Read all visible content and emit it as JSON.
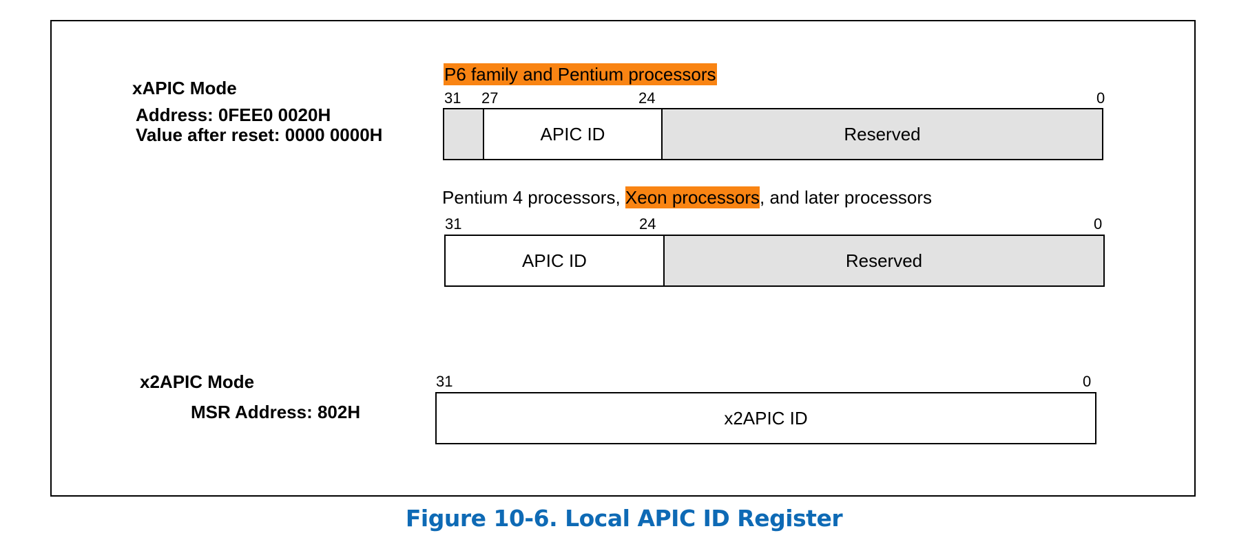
{
  "colors": {
    "highlight": "#f98413",
    "reserved_fill": "#e2e2e2",
    "plain_fill": "#ffffff",
    "caption_color": "#0e6ab5",
    "border": "#000000"
  },
  "xapic": {
    "title": "xAPIC Mode",
    "address": "Address: 0FEE0 0020H",
    "reset_value": "Value after reset: 0000 0000H",
    "p6": {
      "caption": "P6 family and Pentium processors",
      "bit_labels": [
        "31",
        "27",
        "24",
        "0"
      ],
      "fields": [
        {
          "label": "",
          "reserved": true
        },
        {
          "label": "APIC ID",
          "reserved": false
        },
        {
          "label": "Reserved",
          "reserved": true
        }
      ]
    },
    "p4": {
      "caption_part1": "Pentium 4 processors, ",
      "caption_highlight": "Xeon processors",
      "caption_part2": ", and later processors",
      "bit_labels": [
        "31",
        "24",
        "0"
      ],
      "fields": [
        {
          "label": "APIC ID",
          "reserved": false
        },
        {
          "label": "Reserved",
          "reserved": true
        }
      ]
    }
  },
  "x2apic": {
    "title": "x2APIC Mode",
    "msr_address": "MSR Address: 802H",
    "bit_labels": [
      "31",
      "0"
    ],
    "fields": [
      {
        "label": "x2APIC ID",
        "reserved": false
      }
    ]
  },
  "figure_caption": "Figure 10-6.  Local APIC ID Register"
}
